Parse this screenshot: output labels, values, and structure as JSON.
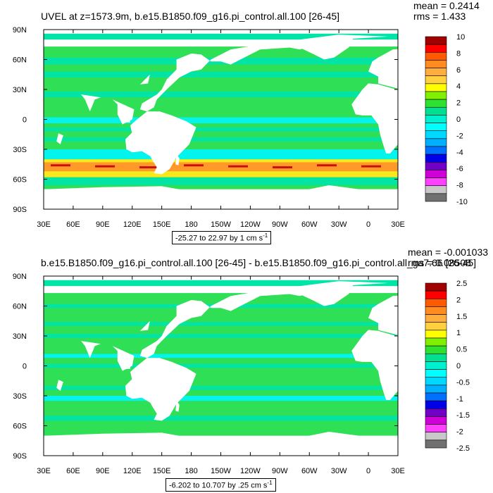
{
  "panels": [
    {
      "title": "UVEL at z=1573.9m, b.e15.B1850.f09_g16.pi_control.all.100 [26-45]",
      "mean_text": "mean = 0.2414",
      "rms_text": "rms = 1.433",
      "range_text": "-25.27 to 22.97 by 1 cm s",
      "range_unit_exp": "-1"
    },
    {
      "title": "b.e15.B1850.f09_g16.pi_control.all.100 [26-45] - b.e15.B1850.f09_g16.pi_control.all_ga7.66 [26-45]",
      "mean_text": "mean = -0.001033",
      "rms_text": "rms = 0.08508",
      "range_text": "-6.202 to 10.707 by .25 cm s",
      "range_unit_exp": "-1"
    }
  ],
  "chart_data": [
    {
      "type": "heatmap",
      "title": "UVEL at z=1573.9m, b.e15.B1850.f09_g16.pi_control.all.100 [26-45]",
      "x_ticks": [
        "30E",
        "60E",
        "90E",
        "120E",
        "150E",
        "180",
        "150W",
        "120W",
        "90W",
        "60W",
        "30W",
        "0",
        "30E"
      ],
      "y_ticks": [
        "90N",
        "60N",
        "30N",
        "0",
        "30S",
        "60S",
        "90S"
      ],
      "colorbar_labels": [
        "10",
        "8",
        "6",
        "4",
        "2",
        "0",
        "-2",
        "-4",
        "-6",
        "-8",
        "-10"
      ],
      "colorbar_colors": [
        "#a00000",
        "#ff0000",
        "#ff5a00",
        "#ff8c20",
        "#ffad3c",
        "#ffd040",
        "#ffff00",
        "#80f000",
        "#30e030",
        "#00e090",
        "#00f0d0",
        "#00ffff",
        "#00d8ff",
        "#00b0ff",
        "#0070ff",
        "#0000e8",
        "#7000c8",
        "#d000d8",
        "#ff40ff",
        "#c8c8c8",
        "#707070"
      ],
      "stats": {
        "mean": 0.2414,
        "rms": 1.433
      },
      "contour_range": {
        "min": -25.27,
        "max": 22.97,
        "interval": 1,
        "units": "cm s-1"
      },
      "land_color": "#ffffff"
    },
    {
      "type": "heatmap",
      "title": "b.e15.B1850.f09_g16.pi_control.all.100 [26-45] - b.e15.B1850.f09_g16.pi_control.all_ga7.66 [26-45]",
      "x_ticks": [
        "30E",
        "60E",
        "90E",
        "120E",
        "150E",
        "180",
        "150W",
        "120W",
        "90W",
        "60W",
        "30W",
        "0",
        "30E"
      ],
      "y_ticks": [
        "90N",
        "60N",
        "30N",
        "0",
        "30S",
        "60S",
        "90S"
      ],
      "colorbar_labels": [
        "2.5",
        "2",
        "1.5",
        "1",
        "0.5",
        "0",
        "-0.5",
        "-1",
        "-1.5",
        "-2",
        "-2.5"
      ],
      "colorbar_colors": [
        "#a00000",
        "#ff0000",
        "#ff5a00",
        "#ff8c20",
        "#ffad3c",
        "#ffd040",
        "#ffff00",
        "#80f000",
        "#30e030",
        "#00e090",
        "#00f0d0",
        "#00ffff",
        "#00d8ff",
        "#00b0ff",
        "#0070ff",
        "#0000e8",
        "#7000c8",
        "#d000d8",
        "#ff40ff",
        "#c8c8c8",
        "#707070"
      ],
      "stats": {
        "mean": -0.001033,
        "rms": 0.08508
      },
      "contour_range": {
        "min": -6.202,
        "max": 10.707,
        "interval": 0.25,
        "units": "cm s-1"
      },
      "land_color": "#ffffff"
    }
  ],
  "colors": {
    "ocean_background": "#2fdf55",
    "band_teal": "#00e4a8",
    "band_cyan": "#00f4f4",
    "acc_yellow": "#f8e81c",
    "acc_orange": "#ff9a2a",
    "acc_red": "#c81010"
  }
}
